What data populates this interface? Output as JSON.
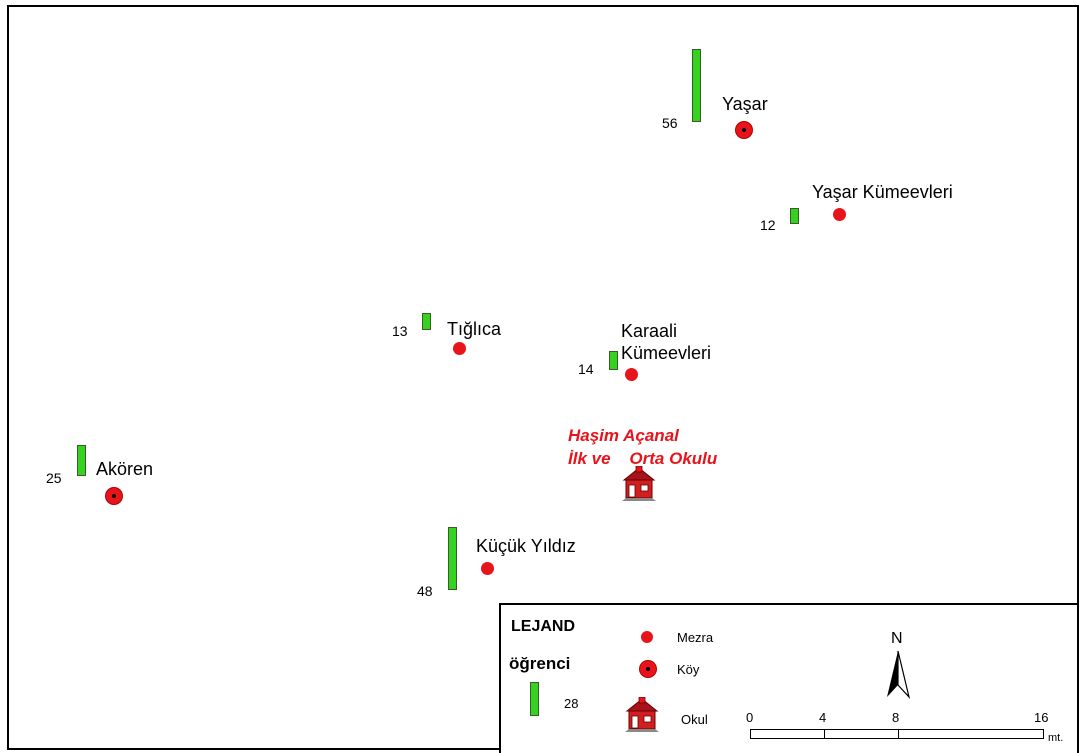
{
  "places": [
    {
      "id": "yasar",
      "name": "Yaşar",
      "students": "56",
      "type": "koy"
    },
    {
      "id": "yasar-kumeevleri",
      "name": "Yaşar Kümeevleri",
      "students": "12",
      "type": "mezra"
    },
    {
      "id": "tiglica",
      "name": "Tığlıca",
      "students": "13",
      "type": "mezra"
    },
    {
      "id": "karaali",
      "name_line1": "Karaali",
      "name_line2": "Kümeevleri",
      "students": "14",
      "type": "mezra"
    },
    {
      "id": "akoren",
      "name": "Akören",
      "students": "25",
      "type": "koy"
    },
    {
      "id": "kucuk-yildiz",
      "name": "Küçük Yıldız",
      "students": "48",
      "type": "mezra"
    }
  ],
  "school": {
    "line1": "Haşim Açanal",
    "line2": "İlk ve    Orta Okulu"
  },
  "legend": {
    "title": "LEJAND",
    "students_label": "öğrenci",
    "sample_count": "28",
    "mezra": "Mezra",
    "koy": "Köy",
    "okul": "Okul"
  },
  "north_label": "N",
  "scale": {
    "ticks": [
      "0",
      "4",
      "8",
      "16"
    ],
    "unit": "mt."
  },
  "colors": {
    "settlement_red": "#e8141b",
    "bar_green": "#35d21f"
  }
}
